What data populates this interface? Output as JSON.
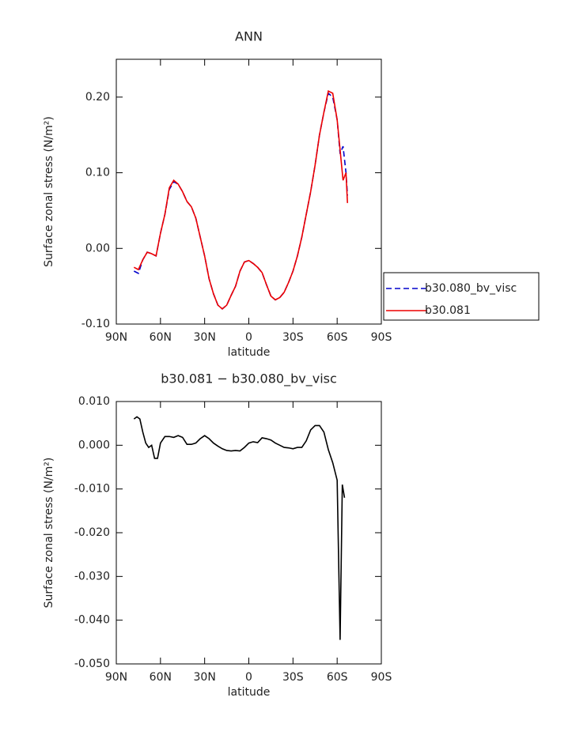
{
  "chart_data": [
    {
      "type": "line",
      "title": "ANN",
      "xlabel": "latitude",
      "ylabel": "Surface zonal stress (N/m²)",
      "xlim": [
        90,
        -90
      ],
      "ylim": [
        -0.1,
        0.25
      ],
      "xticks": [
        {
          "value": 90,
          "label": "90N"
        },
        {
          "value": 60,
          "label": "60N"
        },
        {
          "value": 30,
          "label": "30N"
        },
        0,
        {
          "value": -30,
          "label": "30S"
        },
        {
          "value": -60,
          "label": "60S"
        },
        {
          "value": -90,
          "label": "90S"
        }
      ],
      "yticks": [
        {
          "value": 0.2,
          "label": "0.20"
        },
        {
          "value": 0.1,
          "label": "0.10"
        },
        {
          "value": 0,
          "label": "0.00"
        },
        {
          "value": -0.1,
          "label": "-0.10"
        }
      ],
      "legend": "outside right",
      "x": [
        78,
        75,
        72,
        69,
        66,
        63,
        60,
        57,
        54,
        51,
        48,
        45,
        42,
        39,
        36,
        33,
        30,
        27,
        24,
        21,
        18,
        15,
        12,
        9,
        6,
        3,
        0,
        -3,
        -6,
        -9,
        -12,
        -15,
        -18,
        -21,
        -24,
        -27,
        -30,
        -33,
        -36,
        -39,
        -42,
        -45,
        -48,
        -51,
        -54,
        -57,
        -60,
        -62,
        -64,
        -66,
        -67
      ],
      "series": [
        {
          "name": "b30.080_bv_visc",
          "color": "#0000cc",
          "style": "dashed",
          "values": [
            -0.03,
            -0.033,
            -0.015,
            -0.005,
            -0.007,
            -0.01,
            0.02,
            0.045,
            0.078,
            0.088,
            0.085,
            0.075,
            0.062,
            0.055,
            0.04,
            0.015,
            -0.01,
            -0.04,
            -0.06,
            -0.075,
            -0.08,
            -0.075,
            -0.062,
            -0.05,
            -0.03,
            -0.018,
            -0.016,
            -0.02,
            -0.025,
            -0.032,
            -0.048,
            -0.063,
            -0.068,
            -0.065,
            -0.058,
            -0.045,
            -0.03,
            -0.01,
            0.015,
            0.045,
            0.075,
            0.11,
            0.15,
            0.18,
            0.205,
            0.2,
            0.17,
            0.125,
            0.135,
            0.1,
            0.07
          ]
        },
        {
          "name": "b30.081",
          "color": "#ee0000",
          "style": "solid",
          "values": [
            -0.025,
            -0.028,
            -0.015,
            -0.005,
            -0.007,
            -0.01,
            0.02,
            0.045,
            0.08,
            0.09,
            0.085,
            0.075,
            0.062,
            0.055,
            0.04,
            0.015,
            -0.01,
            -0.04,
            -0.06,
            -0.075,
            -0.08,
            -0.075,
            -0.062,
            -0.05,
            -0.03,
            -0.018,
            -0.016,
            -0.02,
            -0.025,
            -0.032,
            -0.048,
            -0.063,
            -0.068,
            -0.065,
            -0.058,
            -0.045,
            -0.03,
            -0.01,
            0.015,
            0.045,
            0.075,
            0.11,
            0.15,
            0.18,
            0.208,
            0.205,
            0.17,
            0.13,
            0.09,
            0.1,
            0.06
          ]
        }
      ]
    },
    {
      "type": "line",
      "title": "b30.081 − b30.080_bv_visc",
      "xlabel": "latitude",
      "ylabel": "Surface zonal stress (N/m²)",
      "xlim": [
        90,
        -90
      ],
      "ylim": [
        -0.05,
        0.01
      ],
      "xticks": [
        {
          "value": 90,
          "label": "90N"
        },
        {
          "value": 60,
          "label": "60N"
        },
        {
          "value": 30,
          "label": "30N"
        },
        0,
        {
          "value": -30,
          "label": "30S"
        },
        {
          "value": -60,
          "label": "60S"
        },
        {
          "value": -90,
          "label": "90S"
        }
      ],
      "yticks": [
        {
          "value": 0.01,
          "label": "0.010"
        },
        {
          "value": 0,
          "label": "0.000"
        },
        {
          "value": -0.01,
          "label": "-0.010"
        },
        {
          "value": -0.02,
          "label": "-0.020"
        },
        {
          "value": -0.03,
          "label": "-0.030"
        },
        {
          "value": -0.04,
          "label": "-0.040"
        },
        {
          "value": -0.05,
          "label": "-0.050"
        }
      ],
      "x": [
        78,
        76,
        74,
        72,
        70,
        68,
        66,
        64,
        62,
        60,
        57,
        54,
        51,
        48,
        45,
        42,
        39,
        36,
        33,
        30,
        27,
        24,
        21,
        18,
        15,
        12,
        9,
        6,
        3,
        0,
        -3,
        -6,
        -9,
        -12,
        -15,
        -18,
        -21,
        -24,
        -27,
        -30,
        -33,
        -36,
        -39,
        -42,
        -45,
        -48,
        -51,
        -54,
        -57,
        -60,
        -62,
        -63.5,
        -65
      ],
      "series": [
        {
          "color": "#000000",
          "style": "solid",
          "values": [
            0.006,
            0.0065,
            0.006,
            0.003,
            0.0005,
            -0.0005,
            0.0,
            -0.003,
            -0.003,
            0.0005,
            0.002,
            0.002,
            0.0018,
            0.0022,
            0.0018,
            0.0002,
            0.0002,
            0.0005,
            0.0015,
            0.0022,
            0.0015,
            0.0005,
            -0.0002,
            -0.0008,
            -0.0012,
            -0.0013,
            -0.0012,
            -0.0013,
            -0.0005,
            0.0005,
            0.0008,
            0.0006,
            0.0017,
            0.0015,
            0.0012,
            0.0005,
            0,
            -0.0005,
            -0.0006,
            -0.0008,
            -0.0005,
            -0.0005,
            0.001,
            0.0035,
            0.0045,
            0.0045,
            0.003,
            -0.001,
            -0.004,
            -0.008,
            -0.0445,
            -0.009,
            -0.012
          ]
        }
      ]
    }
  ]
}
